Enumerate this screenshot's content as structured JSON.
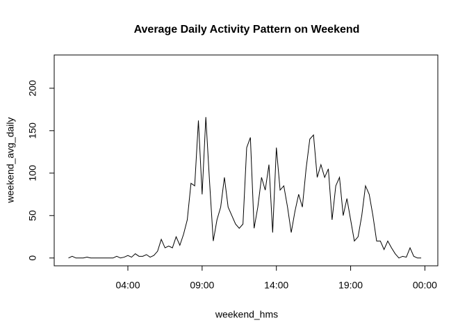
{
  "chart_data": {
    "type": "line",
    "title": "Average Daily Activity Pattern on Weekend",
    "x_label": "weekend_hms",
    "y_label": "weekend_avg_daily",
    "x": [
      0,
      0.25,
      0.5,
      0.75,
      1,
      1.25,
      1.5,
      1.75,
      2,
      2.25,
      2.5,
      2.75,
      3,
      3.25,
      3.5,
      3.75,
      4,
      4.25,
      4.5,
      4.75,
      5,
      5.25,
      5.5,
      5.75,
      6,
      6.25,
      6.5,
      6.75,
      7,
      7.25,
      7.5,
      7.75,
      8,
      8.25,
      8.5,
      8.75,
      9,
      9.25,
      9.5,
      9.75,
      10,
      10.25,
      10.5,
      10.75,
      11,
      11.25,
      11.5,
      11.75,
      12,
      12.25,
      12.5,
      12.75,
      13,
      13.25,
      13.5,
      13.75,
      14,
      14.25,
      14.5,
      14.75,
      15,
      15.25,
      15.5,
      15.75,
      16,
      16.25,
      16.5,
      16.75,
      17,
      17.25,
      17.5,
      17.75,
      18,
      18.25,
      18.5,
      18.75,
      19,
      19.25,
      19.5,
      19.75,
      20,
      20.25,
      20.5,
      20.75,
      21,
      21.25,
      21.5,
      21.75,
      22,
      22.25,
      22.5,
      22.75,
      23,
      23.25,
      23.5,
      23.75
    ],
    "values": [
      0,
      2,
      0,
      0,
      0,
      1,
      0,
      0,
      0,
      0,
      0,
      0,
      0,
      2,
      0,
      1,
      3,
      1,
      5,
      2,
      2,
      4,
      1,
      3,
      8,
      22,
      12,
      14,
      12,
      25,
      15,
      28,
      45,
      88,
      85,
      162,
      75,
      166,
      90,
      20,
      45,
      60,
      95,
      60,
      50,
      40,
      35,
      40,
      130,
      142,
      35,
      60,
      95,
      80,
      110,
      30,
      130,
      80,
      85,
      60,
      30,
      55,
      75,
      60,
      105,
      140,
      145,
      95,
      110,
      95,
      105,
      45,
      85,
      95,
      50,
      70,
      45,
      20,
      25,
      50,
      85,
      75,
      50,
      20,
      20,
      10,
      20,
      12,
      5,
      0,
      2,
      1,
      12,
      2,
      0,
      0
    ],
    "color": "#000000",
    "xlim": [
      -0.96,
      24.87
    ],
    "ylim": [
      -9.2,
      239.2
    ],
    "xticks": [
      {
        "value": 4,
        "label": "04:00"
      },
      {
        "value": 9,
        "label": "09:00"
      },
      {
        "value": 14,
        "label": "14:00"
      },
      {
        "value": 19,
        "label": "19:00"
      },
      {
        "value": 24,
        "label": "00:00"
      }
    ],
    "yticks": [
      0,
      50,
      100,
      150,
      200
    ]
  }
}
